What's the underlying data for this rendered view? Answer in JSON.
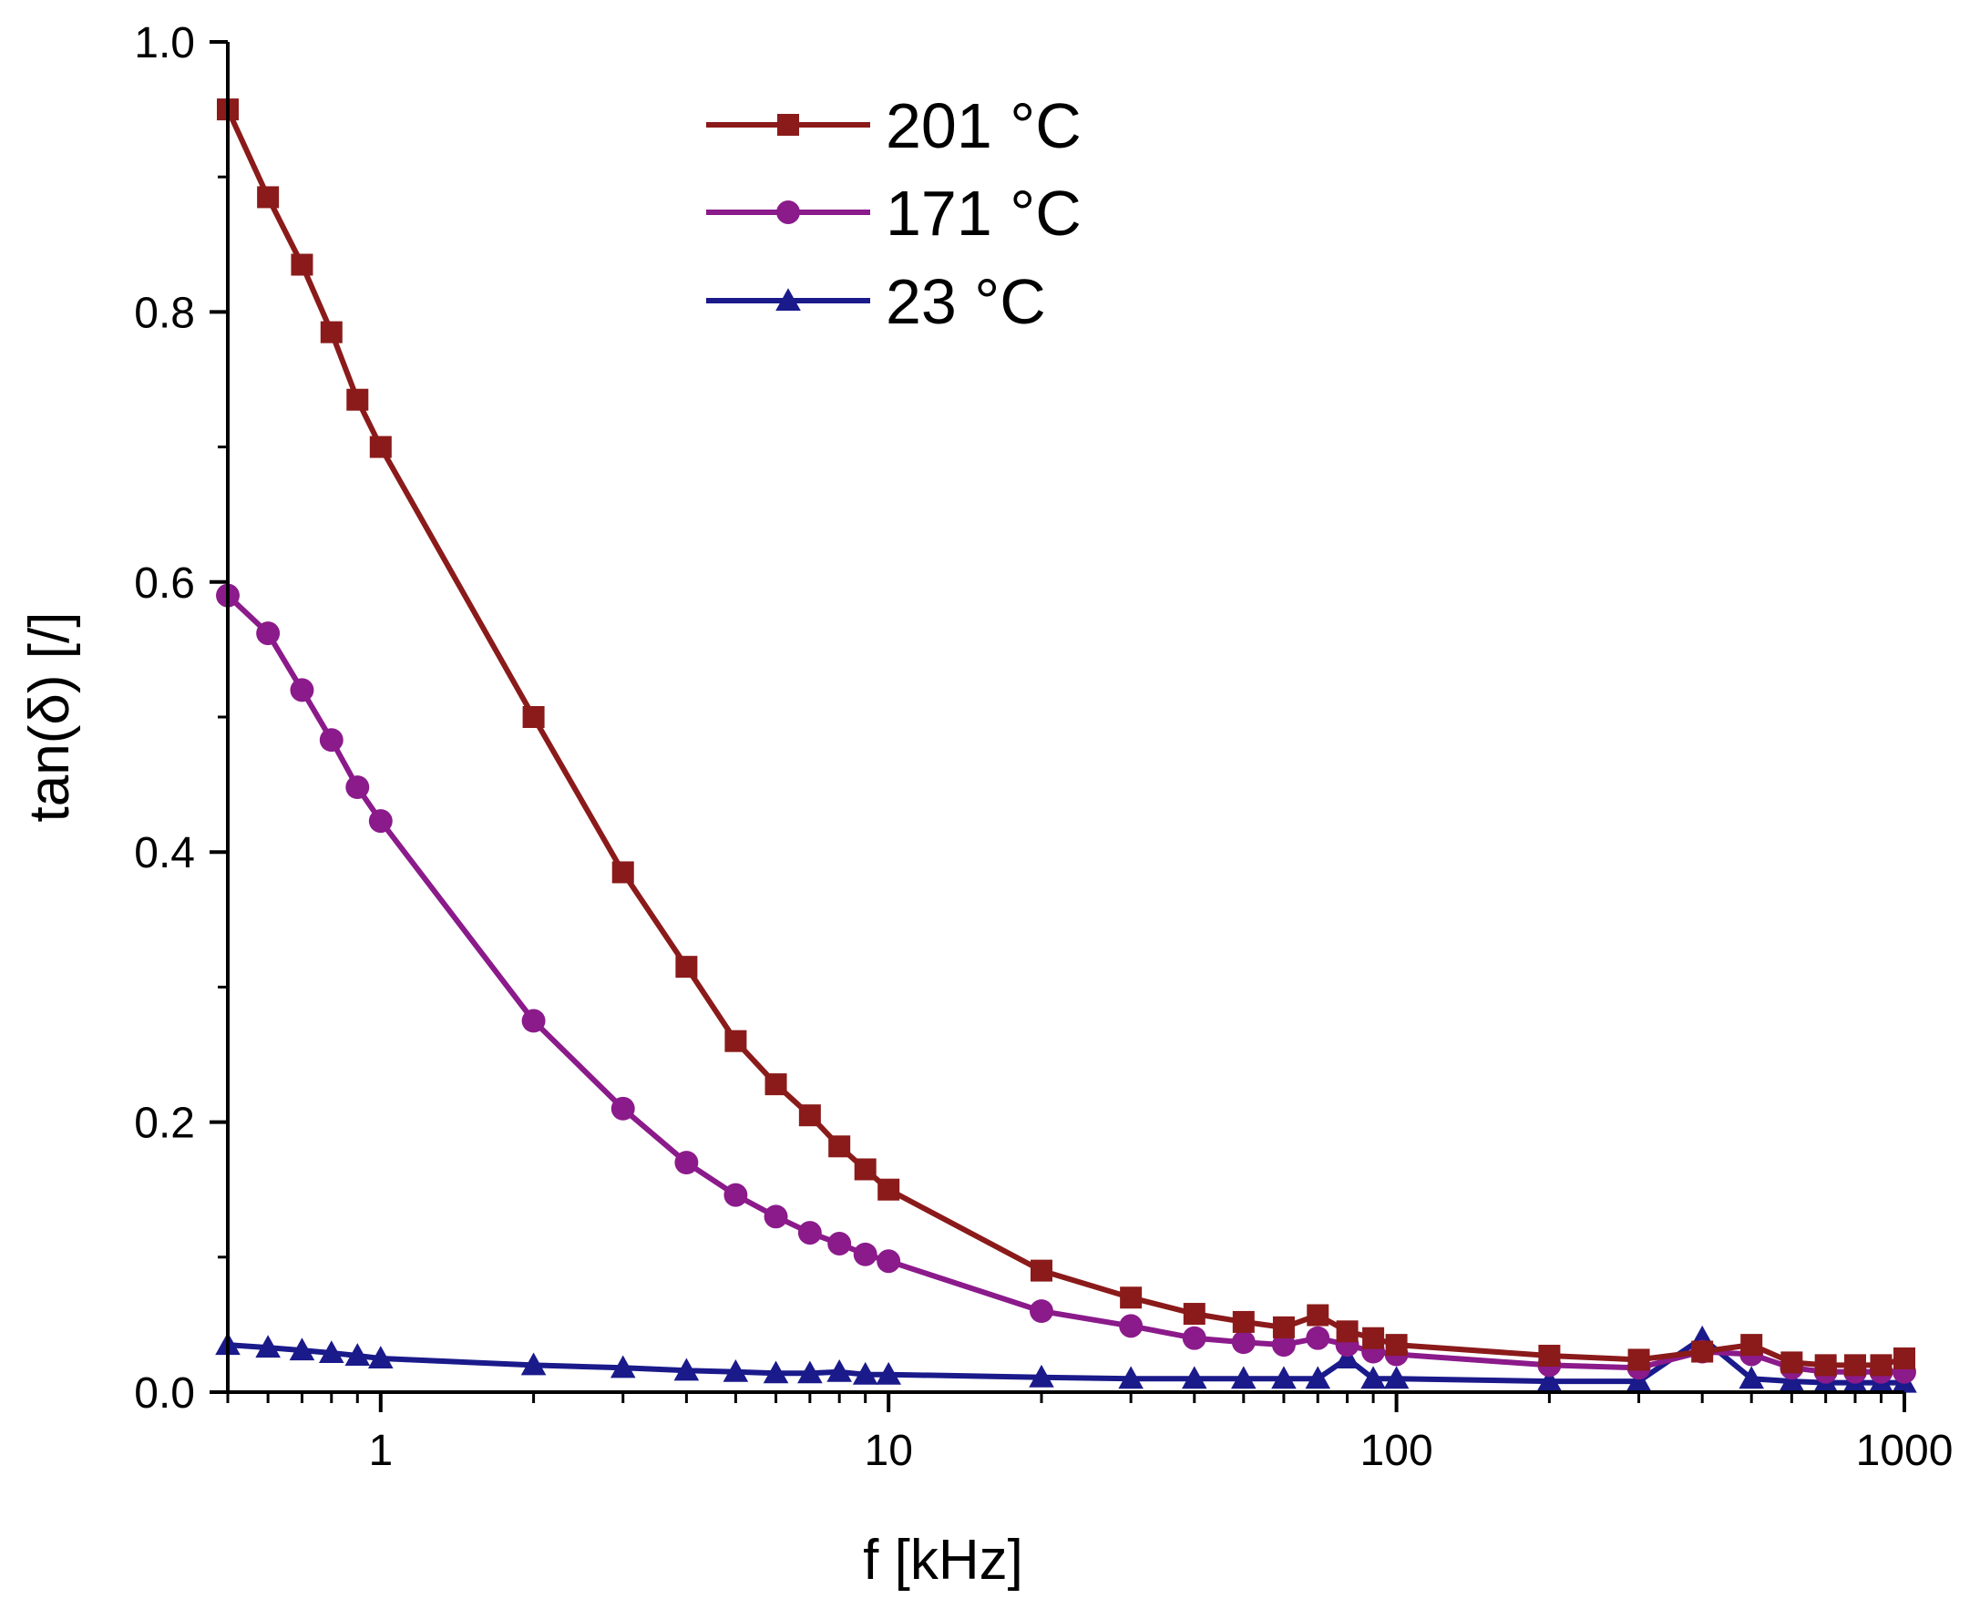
{
  "chart_data": {
    "type": "line",
    "title": "",
    "xlabel": "f [kHz]",
    "ylabel": "tan(δ) [/]",
    "xscale": "log",
    "xlim": [
      0.5,
      1000
    ],
    "ylim": [
      0.0,
      1.0
    ],
    "x_tick_labels": [
      "1",
      "10",
      "100",
      "1000"
    ],
    "x_tick_values": [
      1,
      10,
      100,
      1000
    ],
    "y_tick_labels": [
      "0.0",
      "0.2",
      "0.4",
      "0.6",
      "0.8",
      "1.0"
    ],
    "y_tick_values": [
      0.0,
      0.2,
      0.4,
      0.6,
      0.8,
      1.0
    ],
    "legend_position": "top-center",
    "series": [
      {
        "name": "201 °C",
        "color": "#8b1a1a",
        "marker": "square",
        "x": [
          0.5,
          0.6,
          0.7,
          0.8,
          0.9,
          1,
          2,
          3,
          4,
          5,
          6,
          7,
          8,
          9,
          10,
          20,
          30,
          40,
          50,
          60,
          70,
          80,
          90,
          100,
          200,
          300,
          400,
          500,
          600,
          700,
          800,
          900,
          1000
        ],
        "values": [
          0.95,
          0.885,
          0.835,
          0.785,
          0.735,
          0.7,
          0.5,
          0.385,
          0.315,
          0.26,
          0.228,
          0.205,
          0.182,
          0.165,
          0.15,
          0.09,
          0.07,
          0.058,
          0.052,
          0.048,
          0.057,
          0.045,
          0.04,
          0.035,
          0.027,
          0.024,
          0.03,
          0.035,
          0.022,
          0.02,
          0.02,
          0.02,
          0.025
        ]
      },
      {
        "name": "171 °C",
        "color": "#8b1a8b",
        "marker": "circle",
        "x": [
          0.5,
          0.6,
          0.7,
          0.8,
          0.9,
          1,
          2,
          3,
          4,
          5,
          6,
          7,
          8,
          9,
          10,
          20,
          30,
          40,
          50,
          60,
          70,
          80,
          90,
          100,
          200,
          300,
          400,
          500,
          600,
          700,
          800,
          900,
          1000
        ],
        "values": [
          0.59,
          0.562,
          0.52,
          0.483,
          0.448,
          0.423,
          0.275,
          0.21,
          0.17,
          0.146,
          0.13,
          0.118,
          0.11,
          0.102,
          0.097,
          0.06,
          0.049,
          0.04,
          0.037,
          0.035,
          0.04,
          0.035,
          0.03,
          0.028,
          0.02,
          0.018,
          0.03,
          0.028,
          0.018,
          0.015,
          0.015,
          0.015,
          0.015
        ]
      },
      {
        "name": "23 °C",
        "color": "#1a1a8b",
        "marker": "triangle",
        "x": [
          0.5,
          0.6,
          0.7,
          0.8,
          0.9,
          1,
          2,
          3,
          4,
          5,
          6,
          7,
          8,
          9,
          10,
          20,
          30,
          40,
          50,
          60,
          70,
          80,
          90,
          100,
          200,
          300,
          400,
          500,
          600,
          700,
          800,
          900,
          1000
        ],
        "values": [
          0.035,
          0.033,
          0.031,
          0.029,
          0.027,
          0.025,
          0.02,
          0.018,
          0.016,
          0.015,
          0.014,
          0.014,
          0.015,
          0.013,
          0.013,
          0.011,
          0.01,
          0.01,
          0.01,
          0.01,
          0.01,
          0.025,
          0.01,
          0.01,
          0.008,
          0.008,
          0.04,
          0.01,
          0.008,
          0.007,
          0.007,
          0.007,
          0.007
        ]
      }
    ]
  }
}
